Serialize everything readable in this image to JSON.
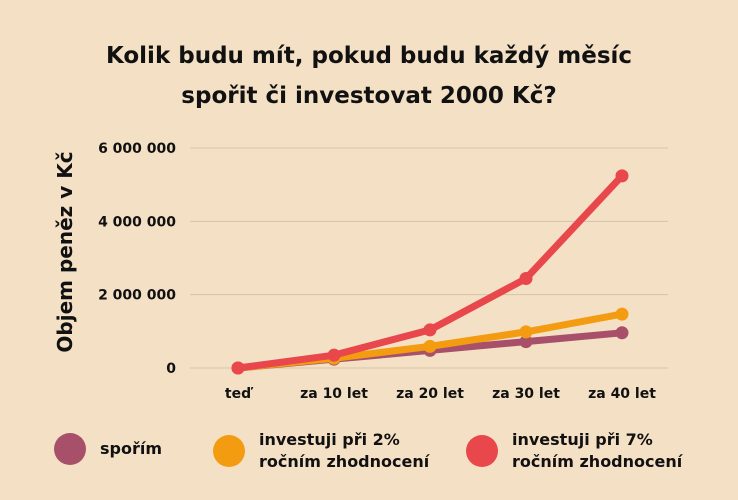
{
  "chart_data": {
    "type": "line",
    "title": [
      "Kolik budu mít, pokud budu každý měsíc",
      "spořit či investovat 2000 Kč?"
    ],
    "xlabel": "",
    "ylabel": "Objem peněz v Kč",
    "categories": [
      "teď",
      "za 10 let",
      "za 20 let",
      "za 30 let",
      "za 40 let"
    ],
    "y_ticks": [
      0,
      2000000,
      4000000,
      6000000
    ],
    "y_tick_labels": [
      "0",
      "2 000 000",
      "4 000 000",
      "6 000 000"
    ],
    "ylim": [
      0,
      6000000
    ],
    "grid": true,
    "legend_position": "bottom",
    "series": [
      {
        "name": [
          "spořím"
        ],
        "color": "#a8506a",
        "values": [
          0,
          240000,
          480000,
          720000,
          960000
        ]
      },
      {
        "name": [
          "investuji při 2%",
          "ročním zhodnocení"
        ],
        "color": "#f39c12",
        "values": [
          0,
          265000,
          590000,
          985000,
          1470000
        ]
      },
      {
        "name": [
          "investuji při 7%",
          "ročním zhodnocení"
        ],
        "color": "#e8474c",
        "values": [
          0,
          350000,
          1040000,
          2440000,
          5240000
        ]
      }
    ]
  }
}
